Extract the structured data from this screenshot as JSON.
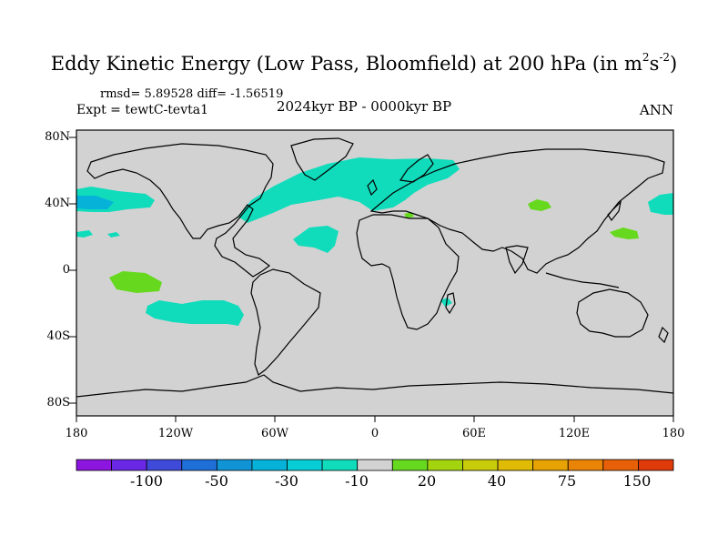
{
  "title": {
    "main": "Eddy Kinetic Energy (Low Pass, Bloomfield) at 200 hPa (in m",
    "sup1": "2",
    "mid": "s",
    "sup2": "-2",
    "end": ")"
  },
  "stats": {
    "rmsd": "rmsd= 5.89528 diff= -1.56519",
    "expt": "Expt = tewtC-tevta1"
  },
  "period": "2024kyr BP - 0000kyr BP",
  "season": "ANN",
  "axes": {
    "lat_labels": [
      "80N",
      "40N",
      "0",
      "40S",
      "80S"
    ],
    "lon_labels": [
      "180",
      "120W",
      "60W",
      "0",
      "60E",
      "120E",
      "180"
    ]
  },
  "colorbar": {
    "colors": [
      "#8c16e0",
      "#6a28e6",
      "#3f4bd8",
      "#1f6fd8",
      "#1194d6",
      "#07b2d8",
      "#08cdd4",
      "#10dcbc",
      "#d2d2d2",
      "#66d91e",
      "#a4d410",
      "#c8cc0a",
      "#dfbb06",
      "#e7a204",
      "#e98406",
      "#e76008",
      "#df3a0a"
    ],
    "labels": [
      "-100",
      "-50",
      "-30",
      "-10",
      "20",
      "40",
      "75",
      "150"
    ]
  },
  "chart_data": {
    "type": "heatmap",
    "title": "Eddy Kinetic Energy (Low Pass, Bloomfield) at 200 hPa (in m^2 s^-2)",
    "subtitle": "2024kyr BP - 0000kyr BP",
    "season": "ANN",
    "x_range": [
      -180,
      180
    ],
    "y_range": [
      -90,
      90
    ],
    "rmsd": 5.89528,
    "diff": -1.56519,
    "levels": [
      -100,
      -50,
      -30,
      -10,
      20,
      40,
      75,
      150
    ],
    "regions": [
      {
        "name": "North Atlantic / Western Europe",
        "bin": "-10 to -30",
        "color": "#10dcbc"
      },
      {
        "name": "North Pacific (west of date line and east of Japan)",
        "bin": "-10 to -30",
        "color": "#10dcbc"
      },
      {
        "name": "Central-east Pacific, ~25N",
        "bin": "-10 to -30",
        "color": "#10dcbc"
      },
      {
        "name": "Subtropical North Atlantic",
        "bin": "-10 to -30",
        "color": "#10dcbc"
      },
      {
        "name": "South Pacific, ~25S-35S",
        "bin": "-10 to -30",
        "color": "#10dcbc"
      },
      {
        "name": "Madagascar channel",
        "bin": "-10 to -30",
        "color": "#10dcbc"
      },
      {
        "name": "Eastern Pacific, ~10S",
        "bin": "10 to 20",
        "color": "#66d91e"
      },
      {
        "name": "Central Asia, ~40N 95E",
        "bin": "10 to 20",
        "color": "#66d91e"
      },
      {
        "name": "West Pacific, ~25N 150E",
        "bin": "10 to 20",
        "color": "#66d91e"
      },
      {
        "name": "Mediterranean (Sicily)",
        "bin": "10 to 20",
        "color": "#66d91e"
      }
    ]
  }
}
